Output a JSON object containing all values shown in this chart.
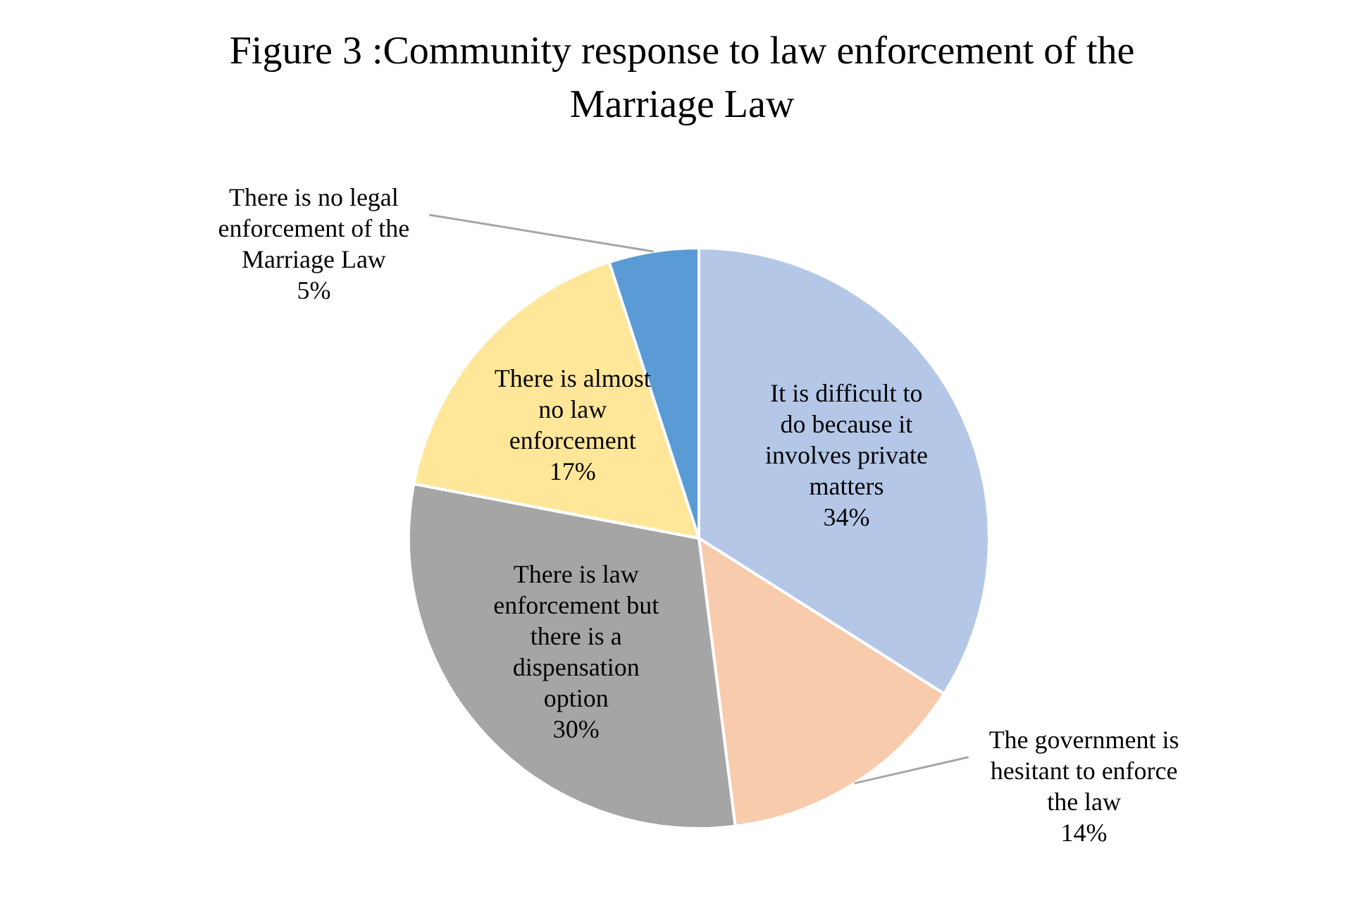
{
  "chart_data": {
    "type": "pie",
    "title": "Figure 3 :Community response to law enforcement of the Marriage Law",
    "categories": [
      "It is difficult to do because it involves private matters",
      "The government is hesitant to enforce the law",
      "There is law enforcement but there is a dispensation option",
      "There is almost no law enforcement",
      "There is no legal enforcement of the Marriage Law"
    ],
    "values": [
      34,
      14,
      30,
      17,
      5
    ],
    "value_labels": [
      "34%",
      "14%",
      "30%",
      "17%",
      "5%"
    ],
    "colors": [
      "#b4c7e7",
      "#f8cbad",
      "#a5a5a5",
      "#ffe699",
      "#5b9bd5"
    ],
    "legend": false
  }
}
